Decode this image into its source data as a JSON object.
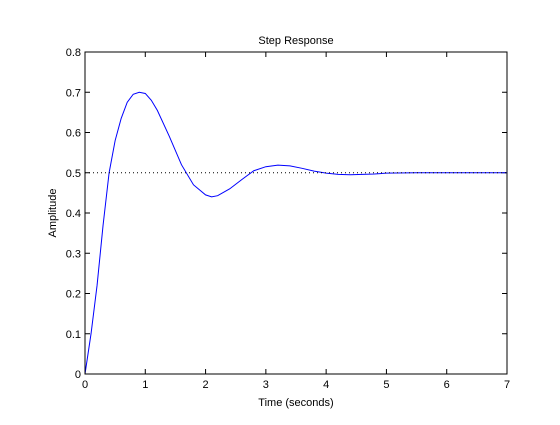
{
  "chart_data": {
    "type": "line",
    "title": "Step Response",
    "xlabel": "Time (seconds)",
    "ylabel": "Amplitude",
    "xlim": [
      0,
      7
    ],
    "ylim": [
      0,
      0.8
    ],
    "xticks": [
      0,
      1,
      2,
      3,
      4,
      5,
      6,
      7
    ],
    "yticks": [
      0,
      0.1,
      0.2,
      0.3,
      0.4,
      0.5,
      0.6,
      0.7,
      0.8
    ],
    "xtick_labels": [
      "0",
      "1",
      "2",
      "3",
      "4",
      "5",
      "6",
      "7"
    ],
    "ytick_labels": [
      "0",
      "0.1",
      "0.2",
      "0.3",
      "0.4",
      "0.5",
      "0.6",
      "0.7",
      "0.8"
    ],
    "grid": false,
    "series": [
      {
        "color": "#0000ff",
        "line_style": "solid",
        "x": [
          0,
          0.1,
          0.2,
          0.3,
          0.4,
          0.5,
          0.6,
          0.7,
          0.8,
          0.9,
          1.0,
          1.1,
          1.2,
          1.4,
          1.6,
          1.8,
          2.0,
          2.1,
          2.2,
          2.4,
          2.6,
          2.8,
          3.0,
          3.2,
          3.4,
          3.6,
          3.8,
          4.0,
          4.2,
          4.4,
          4.6,
          4.8,
          5.0,
          5.5,
          6.0,
          6.5,
          7.0
        ],
        "y": [
          0,
          0.1,
          0.22,
          0.37,
          0.5,
          0.58,
          0.635,
          0.675,
          0.695,
          0.7,
          0.697,
          0.68,
          0.655,
          0.59,
          0.52,
          0.47,
          0.445,
          0.44,
          0.443,
          0.46,
          0.483,
          0.505,
          0.515,
          0.519,
          0.517,
          0.511,
          0.504,
          0.499,
          0.496,
          0.495,
          0.496,
          0.497,
          0.499,
          0.5,
          0.5,
          0.5,
          0.5
        ]
      },
      {
        "color": "#000000",
        "line_style": "dotted",
        "x": [
          0,
          7
        ],
        "y": [
          0.5,
          0.5
        ]
      }
    ]
  }
}
